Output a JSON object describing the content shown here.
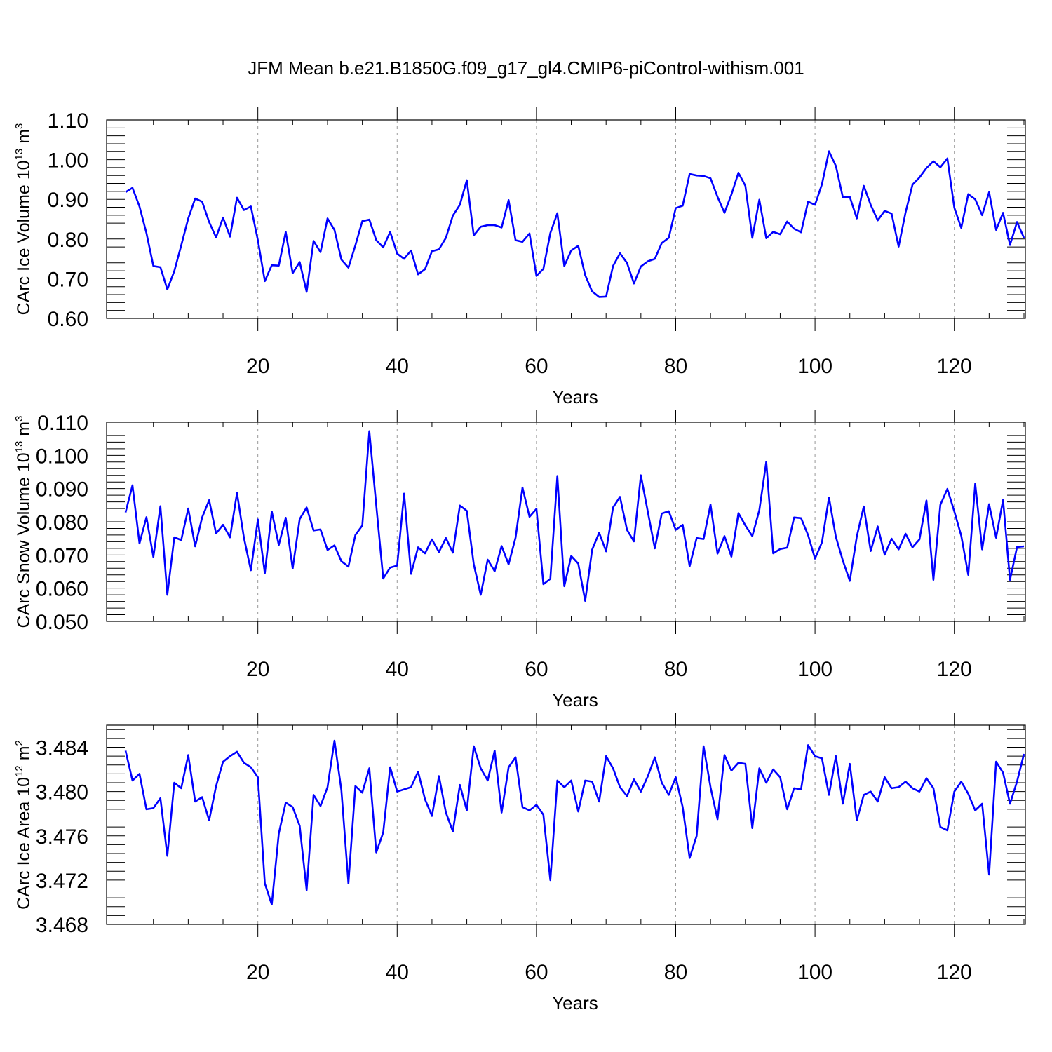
{
  "title": "JFM Mean b.e21.B1850G.f09_g17_gl4.CMIP6-piControl-withism.001",
  "colors": {
    "series": "#0000ff",
    "axes": "#000000",
    "grid": "#999999"
  },
  "chart_data": [
    {
      "type": "line",
      "ylabel": {
        "main": "CArc Ice Volume 10",
        "exp": "13",
        "unit": " m",
        "unit_exp": "3"
      },
      "xlabel": "Years",
      "xlim": [
        1,
        130
      ],
      "ylim": [
        0.6,
        1.1
      ],
      "xticks": [
        20,
        40,
        60,
        80,
        100,
        120
      ],
      "yticks": [
        "0.60",
        "0.70",
        "0.80",
        "0.90",
        "1.00",
        "1.10"
      ],
      "grid": "vertical dashed at x ticks",
      "x_start": 1,
      "values": [
        0.918,
        0.929,
        0.882,
        0.815,
        0.732,
        0.729,
        0.673,
        0.719,
        0.784,
        0.852,
        0.902,
        0.894,
        0.843,
        0.804,
        0.854,
        0.806,
        0.904,
        0.873,
        0.882,
        0.797,
        0.694,
        0.734,
        0.733,
        0.818,
        0.714,
        0.742,
        0.667,
        0.795,
        0.767,
        0.852,
        0.823,
        0.748,
        0.728,
        0.784,
        0.845,
        0.849,
        0.797,
        0.779,
        0.818,
        0.763,
        0.75,
        0.771,
        0.711,
        0.724,
        0.769,
        0.774,
        0.803,
        0.859,
        0.886,
        0.948,
        0.809,
        0.831,
        0.835,
        0.835,
        0.829,
        0.898,
        0.797,
        0.793,
        0.814,
        0.707,
        0.725,
        0.815,
        0.865,
        0.732,
        0.771,
        0.783,
        0.709,
        0.668,
        0.654,
        0.655,
        0.732,
        0.764,
        0.74,
        0.688,
        0.731,
        0.744,
        0.75,
        0.79,
        0.803,
        0.878,
        0.884,
        0.964,
        0.96,
        0.959,
        0.953,
        0.906,
        0.866,
        0.912,
        0.967,
        0.934,
        0.803,
        0.899,
        0.802,
        0.818,
        0.812,
        0.844,
        0.826,
        0.817,
        0.894,
        0.886,
        0.938,
        1.021,
        0.984,
        0.905,
        0.906,
        0.852,
        0.934,
        0.886,
        0.847,
        0.871,
        0.864,
        0.781,
        0.867,
        0.937,
        0.955,
        0.979,
        0.996,
        0.981,
        1.003,
        0.879,
        0.828,
        0.913,
        0.9,
        0.86,
        0.918,
        0.823,
        0.866,
        0.785,
        0.843,
        0.803
      ]
    },
    {
      "type": "line",
      "ylabel": {
        "main": "CArc Snow Volume 10",
        "exp": "13",
        "unit": " m",
        "unit_exp": "3"
      },
      "xlabel": "Years",
      "xlim": [
        1,
        130
      ],
      "ylim": [
        0.05,
        0.11
      ],
      "xticks": [
        20,
        40,
        60,
        80,
        100,
        120
      ],
      "yticks": [
        "0.050",
        "0.060",
        "0.070",
        "0.080",
        "0.090",
        "0.100",
        "0.110"
      ],
      "grid": "vertical dashed at x ticks",
      "x_start": 1,
      "values": [
        0.0828,
        0.091,
        0.0735,
        0.0814,
        0.0694,
        0.0847,
        0.058,
        0.0753,
        0.0745,
        0.084,
        0.0726,
        0.0813,
        0.0865,
        0.0765,
        0.0791,
        0.0753,
        0.0887,
        0.0752,
        0.0654,
        0.0807,
        0.0645,
        0.0831,
        0.073,
        0.0812,
        0.0659,
        0.0808,
        0.0843,
        0.0774,
        0.0777,
        0.0715,
        0.0729,
        0.0681,
        0.0665,
        0.076,
        0.0789,
        0.1073,
        0.0849,
        0.0629,
        0.0662,
        0.0668,
        0.0885,
        0.0643,
        0.0723,
        0.0705,
        0.0747,
        0.0709,
        0.0751,
        0.0707,
        0.0849,
        0.0833,
        0.0672,
        0.058,
        0.0686,
        0.0651,
        0.0727,
        0.0672,
        0.0752,
        0.0903,
        0.0815,
        0.0839,
        0.0612,
        0.0628,
        0.0938,
        0.0606,
        0.0697,
        0.0674,
        0.0562,
        0.0716,
        0.0767,
        0.0711,
        0.0843,
        0.0875,
        0.0776,
        0.0741,
        0.094,
        0.0829,
        0.072,
        0.0825,
        0.0832,
        0.0776,
        0.0791,
        0.0666,
        0.0751,
        0.0748,
        0.0852,
        0.0704,
        0.0757,
        0.0695,
        0.0826,
        0.0789,
        0.0757,
        0.0835,
        0.0981,
        0.0705,
        0.0718,
        0.0722,
        0.0813,
        0.0811,
        0.076,
        0.0689,
        0.0738,
        0.0873,
        0.0754,
        0.0683,
        0.0622,
        0.0756,
        0.0846,
        0.0712,
        0.0786,
        0.0701,
        0.0749,
        0.0717,
        0.0764,
        0.0723,
        0.0747,
        0.0864,
        0.0625,
        0.0851,
        0.0899,
        0.0831,
        0.0758,
        0.064,
        0.0915,
        0.0717,
        0.0853,
        0.0752,
        0.0866,
        0.0625,
        0.0724,
        0.0726
      ]
    },
    {
      "type": "line",
      "ylabel": {
        "main": "CArc Ice Area 10",
        "exp": "12",
        "unit": " m",
        "unit_exp": "2"
      },
      "xlabel": "Years",
      "xlim": [
        1,
        130
      ],
      "ylim": [
        3.468,
        3.486
      ],
      "xticks": [
        20,
        40,
        60,
        80,
        100,
        120
      ],
      "yticks": [
        "3.468",
        "3.472",
        "3.476",
        "3.480",
        "3.484"
      ],
      "grid": "vertical dashed at x ticks",
      "x_start": 1,
      "values": [
        3.4837,
        3.481,
        3.4816,
        3.4784,
        3.4785,
        3.4794,
        3.4742,
        3.4808,
        3.4803,
        3.4833,
        3.4791,
        3.4795,
        3.4774,
        3.4805,
        3.4827,
        3.4832,
        3.4836,
        3.4826,
        3.4822,
        3.4813,
        3.4717,
        3.4698,
        3.4762,
        3.479,
        3.4786,
        3.4769,
        3.4711,
        3.4797,
        3.4787,
        3.4804,
        3.4846,
        3.4801,
        3.4717,
        3.4805,
        3.4799,
        3.4821,
        3.4745,
        3.4763,
        3.4822,
        3.48,
        3.4802,
        3.4804,
        3.4818,
        3.4793,
        3.4778,
        3.4814,
        3.4781,
        3.4764,
        3.4806,
        3.4783,
        3.4841,
        3.4821,
        3.481,
        3.4837,
        3.4781,
        3.4822,
        3.4831,
        3.4786,
        3.4783,
        3.4788,
        3.4779,
        3.472,
        3.481,
        3.4804,
        3.481,
        3.4782,
        3.481,
        3.4809,
        3.4791,
        3.4832,
        3.4821,
        3.4804,
        3.4796,
        3.4811,
        3.48,
        3.4814,
        3.4831,
        3.4808,
        3.4797,
        3.4813,
        3.4786,
        3.474,
        3.476,
        3.4841,
        3.4804,
        3.4775,
        3.4833,
        3.4819,
        3.4826,
        3.4825,
        3.4767,
        3.4821,
        3.4808,
        3.482,
        3.4813,
        3.4784,
        3.4803,
        3.4802,
        3.4842,
        3.4832,
        3.483,
        3.4797,
        3.4832,
        3.4789,
        3.4825,
        3.4774,
        3.4797,
        3.48,
        3.4791,
        3.4813,
        3.4803,
        3.4804,
        3.4809,
        3.4803,
        3.48,
        3.4812,
        3.4803,
        3.4768,
        3.4765,
        3.48,
        3.4809,
        3.4798,
        3.4783,
        3.4789,
        3.4725,
        3.4827,
        3.4817,
        3.4789,
        3.4809,
        3.4834
      ]
    }
  ]
}
